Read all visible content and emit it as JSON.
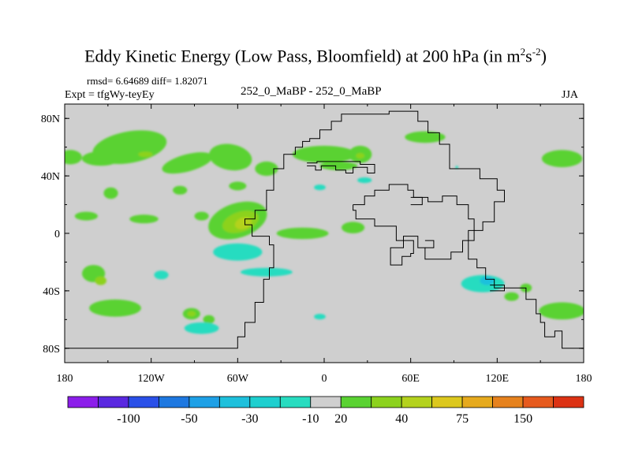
{
  "chart_data": {
    "type": "heatmap",
    "title": "Eddy Kinetic Energy (Low Pass, Bloomfield) at 200 hPa (in m",
    "title_sup1": "2",
    "title_mid": "s",
    "title_sup2": "-2",
    "title_end": ")",
    "stats": "rmsd= 6.64689 diff= 1.82071",
    "expt": "Expt = tfgWy-teyEy",
    "center_label": "252_0_MaBP - 252_0_MaBP",
    "season": "JJA",
    "x_ticks": [
      {
        "lon": -180,
        "label": "180"
      },
      {
        "lon": -120,
        "label": "120W"
      },
      {
        "lon": -60,
        "label": "60W"
      },
      {
        "lon": 0,
        "label": "0"
      },
      {
        "lon": 60,
        "label": "60E"
      },
      {
        "lon": 120,
        "label": "120E"
      },
      {
        "lon": 180,
        "label": "180"
      }
    ],
    "y_ticks": [
      {
        "lat": 80,
        "label": "80N"
      },
      {
        "lat": 40,
        "label": "40N"
      },
      {
        "lat": 0,
        "label": "0"
      },
      {
        "lat": -40,
        "label": "40S"
      },
      {
        "lat": -80,
        "label": "80S"
      }
    ],
    "xlim": [
      -180,
      180
    ],
    "ylim": [
      -90,
      90
    ],
    "colorbar": {
      "colors": [
        "#8c1eea",
        "#5a28e0",
        "#2a50e8",
        "#1e78e0",
        "#1ea0e6",
        "#1ec0dc",
        "#1ecfcf",
        "#28dcc0",
        "#cfcfcf",
        "#5ad232",
        "#8cd21e",
        "#b4d21e",
        "#dcc81e",
        "#e6aa1e",
        "#e6821e",
        "#e65a1e",
        "#dc3214"
      ],
      "labels": [
        {
          "boundary": 2,
          "text": "-100"
        },
        {
          "boundary": 4,
          "text": "-50"
        },
        {
          "boundary": 6,
          "text": "-30"
        },
        {
          "boundary": 8,
          "text": "-10"
        },
        {
          "boundary": 9,
          "text": "20"
        },
        {
          "boundary": 11,
          "text": "40"
        },
        {
          "boundary": 13,
          "text": "75"
        },
        {
          "boundary": 15,
          "text": "150"
        }
      ]
    },
    "anomalies": [
      {
        "name": "n-pacific-west",
        "lon": -176,
        "lat": 53,
        "rlon": 8,
        "rlat": 5,
        "level": "pos",
        "rot": 0
      },
      {
        "name": "n-pacific",
        "lon": -135,
        "lat": 60,
        "rlon": 26,
        "rlat": 11,
        "level": "pos",
        "rot": -10
      },
      {
        "name": "n-pacific-core",
        "lon": -124,
        "lat": 55,
        "rlon": 5,
        "rlat": 2,
        "level": "pos2",
        "rot": 0
      },
      {
        "name": "n-pacific-2",
        "lon": -155,
        "lat": 52,
        "rlon": 13,
        "rlat": 5,
        "level": "pos",
        "rot": 0
      },
      {
        "name": "n-pacific-3",
        "lon": -95,
        "lat": 49,
        "rlon": 18,
        "rlat": 6,
        "level": "pos",
        "rot": -15
      },
      {
        "name": "n-america-west",
        "lon": -65,
        "lat": 53,
        "rlon": 15,
        "rlat": 9,
        "level": "pos",
        "rot": 10
      },
      {
        "name": "n-america-east",
        "lon": -40,
        "lat": 45,
        "rlon": 8,
        "rlat": 5,
        "level": "pos",
        "rot": 0
      },
      {
        "name": "n-atlantic",
        "lon": 0,
        "lat": 55,
        "rlon": 22,
        "rlat": 6,
        "level": "pos",
        "rot": 0
      },
      {
        "name": "n-atlantic-2",
        "lon": 10,
        "lat": 47,
        "rlon": 13,
        "rlat": 3,
        "level": "pos",
        "rot": 0
      },
      {
        "name": "europe",
        "lon": 25,
        "lat": 55,
        "rlon": 8,
        "rlat": 6,
        "level": "pos",
        "rot": 0
      },
      {
        "name": "europe-core",
        "lon": 25,
        "lat": 54,
        "rlon": 3,
        "rlat": 2,
        "level": "pos2",
        "rot": 0
      },
      {
        "name": "russia",
        "lon": 70,
        "lat": 67,
        "rlon": 14,
        "rlat": 4,
        "level": "pos",
        "rot": 0
      },
      {
        "name": "siberia",
        "lon": 165,
        "lat": 52,
        "rlon": 14,
        "rlat": 6,
        "level": "pos",
        "rot": 0
      },
      {
        "name": "trop-pacific-1",
        "lon": -148,
        "lat": 28,
        "rlon": 5,
        "rlat": 4,
        "level": "pos",
        "rot": 0
      },
      {
        "name": "trop-pacific-2",
        "lon": -100,
        "lat": 30,
        "rlon": 5,
        "rlat": 3,
        "level": "pos",
        "rot": 0
      },
      {
        "name": "trop-pacific-3",
        "lon": -60,
        "lat": 33,
        "rlon": 6,
        "rlat": 3,
        "level": "pos",
        "rot": 0
      },
      {
        "name": "eq-pacific-a",
        "lon": -165,
        "lat": 12,
        "rlon": 8,
        "rlat": 3,
        "level": "pos",
        "rot": 0
      },
      {
        "name": "eq-pacific-b",
        "lon": -125,
        "lat": 10,
        "rlon": 10,
        "rlat": 3,
        "level": "pos",
        "rot": 0
      },
      {
        "name": "eq-pacific-c",
        "lon": -85,
        "lat": 12,
        "rlon": 5,
        "rlat": 3,
        "level": "pos",
        "rot": 0
      },
      {
        "name": "eq-max",
        "lon": -60,
        "lat": 9,
        "rlon": 21,
        "rlat": 12,
        "level": "pos",
        "rot": -18
      },
      {
        "name": "eq-max-2",
        "lon": -58,
        "lat": 8,
        "rlon": 13,
        "rlat": 7,
        "level": "pos2",
        "rot": -18
      },
      {
        "name": "eq-max-core",
        "lon": -56,
        "lat": 7,
        "rlon": 6,
        "rlat": 4,
        "level": "pos3",
        "rot": -18
      },
      {
        "name": "atl-eq",
        "lon": -15,
        "lat": 0,
        "rlon": 18,
        "rlat": 4,
        "level": "pos",
        "rot": 0
      },
      {
        "name": "africa",
        "lon": 20,
        "lat": 4,
        "rlon": 8,
        "rlat": 4,
        "level": "pos",
        "rot": 0
      },
      {
        "name": "s-pacific-a",
        "lon": -160,
        "lat": -28,
        "rlon": 8,
        "rlat": 6,
        "level": "pos",
        "rot": 0
      },
      {
        "name": "s-pacific-a-core",
        "lon": -155,
        "lat": -33,
        "rlon": 4,
        "rlat": 3,
        "level": "pos2",
        "rot": 0
      },
      {
        "name": "s-pacific-b",
        "lon": -145,
        "lat": -52,
        "rlon": 18,
        "rlat": 6,
        "level": "pos",
        "rot": 0
      },
      {
        "name": "s-pacific-c",
        "lon": -92,
        "lat": -56,
        "rlon": 6,
        "rlat": 4,
        "level": "pos",
        "rot": 0
      },
      {
        "name": "s-pacific-c-core",
        "lon": -92,
        "lat": -56,
        "rlon": 3,
        "rlat": 2,
        "level": "pos2",
        "rot": 0
      },
      {
        "name": "s-pacific-d",
        "lon": -80,
        "lat": -60,
        "rlon": 4,
        "rlat": 3,
        "level": "pos",
        "rot": 0
      },
      {
        "name": "indian-s",
        "lon": 130,
        "lat": -44,
        "rlon": 5,
        "rlat": 3,
        "level": "pos",
        "rot": 0
      },
      {
        "name": "indian-s2",
        "lon": 140,
        "lat": -38,
        "rlon": 4,
        "rlat": 3,
        "level": "pos",
        "rot": 0
      },
      {
        "name": "s-pacific-e",
        "lon": 165,
        "lat": -54,
        "rlon": 16,
        "rlat": 6,
        "level": "pos",
        "rot": 0
      },
      {
        "name": "n-pac-neg",
        "lon": 28,
        "lat": 37,
        "rlon": 5,
        "rlat": 2,
        "level": "neg",
        "rot": 0
      },
      {
        "name": "neg-atl",
        "lon": -3,
        "lat": 32,
        "rlon": 4,
        "rlat": 2,
        "level": "neg",
        "rot": 0
      },
      {
        "name": "neg-eq-1",
        "lon": -60,
        "lat": -13,
        "rlon": 17,
        "rlat": 6,
        "level": "neg",
        "rot": 0
      },
      {
        "name": "neg-eq-2",
        "lon": -40,
        "lat": -27,
        "rlon": 18,
        "rlat": 3,
        "level": "neg",
        "rot": 0
      },
      {
        "name": "neg-eq-3",
        "lon": -113,
        "lat": -29,
        "rlon": 5,
        "rlat": 3,
        "level": "neg",
        "rot": 0
      },
      {
        "name": "neg-s-1",
        "lon": -85,
        "lat": -66,
        "rlon": 12,
        "rlat": 4,
        "level": "neg",
        "rot": 0
      },
      {
        "name": "neg-s-2",
        "lon": -3,
        "lat": -58,
        "rlon": 4,
        "rlat": 2,
        "level": "neg",
        "rot": 0
      },
      {
        "name": "neg-s-3",
        "lon": 110,
        "lat": -35,
        "rlon": 15,
        "rlat": 6,
        "level": "neg",
        "rot": 0
      },
      {
        "name": "neg-s-3-core",
        "lon": 113,
        "lat": -33,
        "rlon": 5,
        "rlat": 3,
        "level": "neg2",
        "rot": 0
      },
      {
        "name": "neg-dot",
        "lon": 92,
        "lat": 46,
        "rlon": 1,
        "rlat": 1,
        "level": "neg",
        "rot": 0
      }
    ],
    "level_colors": {
      "pos": "#5ad232",
      "pos2": "#8cd21e",
      "pos3": "#b4d21e",
      "neg": "#28dcc0",
      "neg2": "#1ec0dc"
    },
    "coastlines": [
      [
        [
          -180,
          -80
        ],
        [
          -60,
          -80
        ],
        [
          -60,
          -72
        ],
        [
          -55,
          -72
        ],
        [
          -55,
          -62
        ],
        [
          -48,
          -62
        ],
        [
          -48,
          -48
        ],
        [
          -42,
          -48
        ],
        [
          -42,
          -32
        ],
        [
          -38,
          -32
        ],
        [
          -38,
          -24
        ],
        [
          -35,
          -24
        ],
        [
          -35,
          -8
        ],
        [
          -38,
          -8
        ],
        [
          -38,
          -2
        ],
        [
          -50,
          -2
        ],
        [
          -50,
          6
        ],
        [
          -55,
          6
        ],
        [
          -55,
          10
        ],
        [
          -48,
          10
        ],
        [
          -48,
          16
        ],
        [
          -40,
          16
        ],
        [
          -40,
          30
        ],
        [
          -35,
          30
        ],
        [
          -35,
          45
        ],
        [
          -28,
          45
        ],
        [
          -28,
          55
        ],
        [
          -20,
          55
        ],
        [
          -20,
          60
        ],
        [
          -15,
          60
        ],
        [
          -15,
          64
        ],
        [
          -10,
          64
        ],
        [
          -10,
          66
        ],
        [
          -3,
          66
        ],
        [
          -3,
          72
        ],
        [
          5,
          72
        ],
        [
          5,
          78
        ],
        [
          12,
          78
        ],
        [
          12,
          83
        ],
        [
          45,
          83
        ],
        [
          45,
          85
        ],
        [
          65,
          85
        ],
        [
          65,
          78
        ],
        [
          72,
          78
        ],
        [
          72,
          70
        ],
        [
          80,
          70
        ],
        [
          80,
          62
        ],
        [
          87,
          62
        ],
        [
          87,
          45
        ],
        [
          108,
          45
        ],
        [
          108,
          38
        ],
        [
          120,
          38
        ],
        [
          120,
          30
        ],
        [
          125,
          30
        ],
        [
          125,
          22
        ],
        [
          118,
          22
        ],
        [
          118,
          8
        ],
        [
          110,
          8
        ],
        [
          110,
          2
        ],
        [
          100,
          2
        ],
        [
          100,
          -18
        ],
        [
          106,
          -18
        ],
        [
          106,
          -24
        ],
        [
          112,
          -24
        ],
        [
          112,
          -32
        ],
        [
          118,
          -32
        ],
        [
          118,
          -38
        ],
        [
          140,
          -38
        ],
        [
          140,
          -46
        ],
        [
          147,
          -46
        ],
        [
          147,
          -56
        ],
        [
          150,
          -56
        ],
        [
          150,
          -62
        ],
        [
          153,
          -62
        ],
        [
          153,
          -72
        ],
        [
          160,
          -72
        ],
        [
          160,
          -68
        ],
        [
          165,
          -68
        ],
        [
          165,
          -80
        ],
        [
          180,
          -80
        ]
      ],
      [
        [
          -12,
          47
        ],
        [
          -6,
          47
        ],
        [
          -6,
          44
        ],
        [
          -2,
          44
        ],
        [
          -2,
          47
        ],
        [
          8,
          47
        ],
        [
          8,
          44
        ],
        [
          15,
          44
        ],
        [
          15,
          42
        ],
        [
          20,
          42
        ],
        [
          20,
          46
        ],
        [
          30,
          46
        ],
        [
          30,
          42
        ],
        [
          35,
          42
        ],
        [
          35,
          48
        ],
        [
          25,
          48
        ],
        [
          25,
          50
        ],
        [
          -5,
          50
        ],
        [
          -5,
          49
        ],
        [
          -12,
          49
        ]
      ],
      [
        [
          20,
          20
        ],
        [
          28,
          20
        ],
        [
          28,
          26
        ],
        [
          35,
          26
        ],
        [
          35,
          30
        ],
        [
          45,
          30
        ],
        [
          45,
          34
        ],
        [
          58,
          34
        ],
        [
          58,
          30
        ],
        [
          62,
          30
        ],
        [
          62,
          25
        ],
        [
          72,
          25
        ],
        [
          72,
          22
        ],
        [
          82,
          22
        ],
        [
          82,
          26
        ],
        [
          92,
          26
        ],
        [
          92,
          20
        ],
        [
          100,
          20
        ],
        [
          100,
          10
        ],
        [
          104,
          10
        ],
        [
          104,
          -5
        ],
        [
          96,
          -5
        ],
        [
          96,
          -13
        ],
        [
          88,
          -13
        ],
        [
          88,
          -18
        ],
        [
          70,
          -18
        ],
        [
          70,
          -10
        ],
        [
          65,
          -10
        ],
        [
          65,
          -2
        ],
        [
          55,
          -2
        ],
        [
          55,
          -10
        ],
        [
          46,
          -10
        ],
        [
          46,
          -22
        ],
        [
          54,
          -22
        ],
        [
          54,
          -16
        ],
        [
          60,
          -16
        ],
        [
          60,
          -14
        ],
        [
          62,
          -14
        ],
        [
          62,
          -5
        ],
        [
          50,
          -5
        ],
        [
          50,
          5
        ],
        [
          35,
          5
        ],
        [
          35,
          10
        ],
        [
          22,
          10
        ],
        [
          22,
          16
        ],
        [
          20,
          16
        ],
        [
          20,
          20
        ]
      ],
      [
        [
          60,
          25
        ],
        [
          68,
          25
        ],
        [
          68,
          20
        ],
        [
          60,
          20
        ]
      ],
      [
        [
          70,
          -5
        ],
        [
          76,
          -5
        ],
        [
          76,
          -10
        ],
        [
          70,
          -10
        ]
      ],
      [
        [
          115,
          -40
        ],
        [
          125,
          -40
        ],
        [
          125,
          -36
        ],
        [
          115,
          -36
        ]
      ]
    ]
  }
}
